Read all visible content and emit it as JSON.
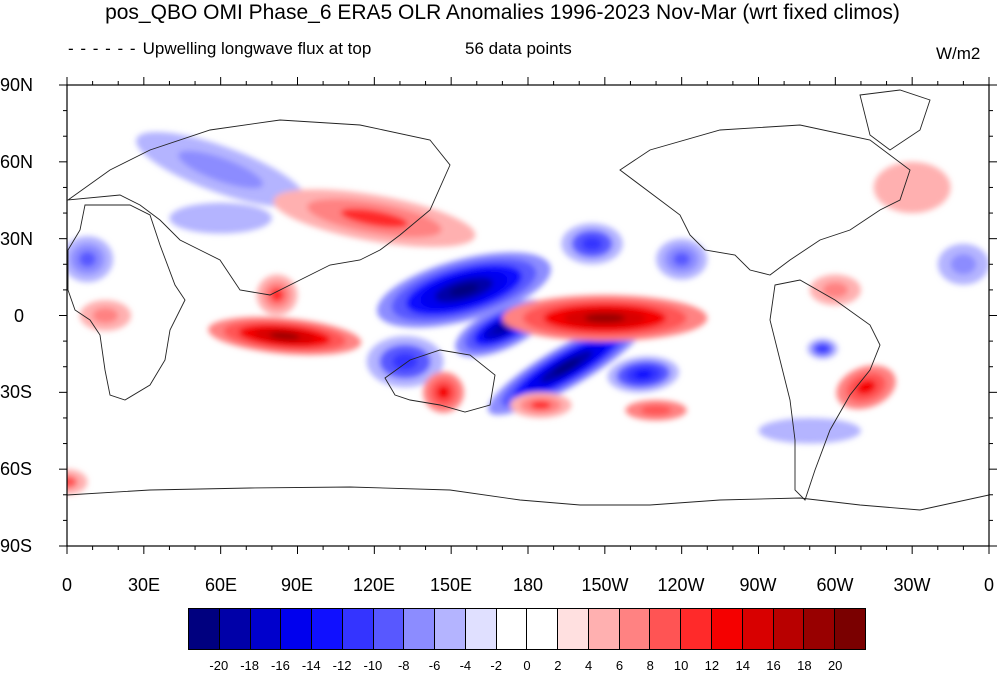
{
  "title": "pos_QBO OMI Phase_6 ERA5 OLR Anomalies 1996-2023 Nov-Mar (wrt fixed climos)",
  "subtitle_left": "Upwelling longwave flux at top",
  "subtitle_mid": "56 data points",
  "units": "W/m2",
  "legend_dash": "- - - - - -",
  "y_ticks": [
    "90N",
    "60N",
    "30N",
    "0",
    "30S",
    "60S",
    "90S"
  ],
  "x_ticks": [
    "0",
    "30E",
    "60E",
    "90E",
    "120E",
    "150E",
    "180",
    "150W",
    "120W",
    "90W",
    "60W",
    "30W",
    "0"
  ],
  "colorbar": {
    "labels": [
      "-20",
      "-18",
      "-16",
      "-14",
      "-12",
      "-10",
      "-8",
      "-6",
      "-4",
      "-2",
      "0",
      "2",
      "4",
      "6",
      "8",
      "10",
      "12",
      "14",
      "16",
      "18",
      "20"
    ],
    "colors": [
      "#00007f",
      "#0000a8",
      "#0000cc",
      "#0000ee",
      "#1010ff",
      "#3434ff",
      "#5858ff",
      "#8c8cff",
      "#b4b4ff",
      "#e0e0ff",
      "#ffffff",
      "#ffffff",
      "#ffe0e0",
      "#ffb0b0",
      "#ff8282",
      "#ff5454",
      "#ff2a2a",
      "#f50000",
      "#d80000",
      "#b80000",
      "#980000",
      "#7a0000"
    ]
  },
  "map": {
    "lon_range": [
      0,
      360
    ],
    "lat_range": [
      -90,
      90
    ],
    "anomalies": [
      {
        "lon": 155,
        "lat": 10,
        "rx": 35,
        "ry": 12,
        "rot": -15,
        "value": -22
      },
      {
        "lon": 170,
        "lat": -5,
        "rx": 20,
        "ry": 8,
        "rot": -25,
        "value": -20
      },
      {
        "lon": 195,
        "lat": -20,
        "rx": 35,
        "ry": 8,
        "rot": -30,
        "value": -22
      },
      {
        "lon": 132,
        "lat": -18,
        "rx": 15,
        "ry": 10,
        "rot": 0,
        "value": -12
      },
      {
        "lon": 225,
        "lat": -23,
        "rx": 14,
        "ry": 7,
        "rot": -5,
        "value": -14
      },
      {
        "lon": 205,
        "lat": 28,
        "rx": 12,
        "ry": 8,
        "rot": 0,
        "value": -12
      },
      {
        "lon": 240,
        "lat": 22,
        "rx": 10,
        "ry": 8,
        "rot": 0,
        "value": -10
      },
      {
        "lon": 60,
        "lat": 57,
        "rx": 35,
        "ry": 9,
        "rot": 20,
        "value": -8
      },
      {
        "lon": 8,
        "lat": 22,
        "rx": 10,
        "ry": 9,
        "rot": 0,
        "value": -10
      },
      {
        "lon": 295,
        "lat": -13,
        "rx": 6,
        "ry": 4,
        "rot": 0,
        "value": -12
      },
      {
        "lon": 350,
        "lat": 20,
        "rx": 10,
        "ry": 8,
        "rot": 0,
        "value": -8
      },
      {
        "lon": 60,
        "lat": 38,
        "rx": 20,
        "ry": 6,
        "rot": 0,
        "value": -6
      },
      {
        "lon": 290,
        "lat": -45,
        "rx": 20,
        "ry": 5,
        "rot": 0,
        "value": -5
      },
      {
        "lon": 210,
        "lat": -1,
        "rx": 40,
        "ry": 9,
        "rot": 0,
        "value": 18
      },
      {
        "lon": 85,
        "lat": -8,
        "rx": 30,
        "ry": 7,
        "rot": 5,
        "value": 18
      },
      {
        "lon": 82,
        "lat": 8,
        "rx": 8,
        "ry": 8,
        "rot": 0,
        "value": 10
      },
      {
        "lon": 120,
        "lat": 38,
        "rx": 40,
        "ry": 9,
        "rot": 10,
        "value": 10
      },
      {
        "lon": 147,
        "lat": -30,
        "rx": 8,
        "ry": 8,
        "rot": 0,
        "value": 12
      },
      {
        "lon": 185,
        "lat": -35,
        "rx": 12,
        "ry": 5,
        "rot": 0,
        "value": 10
      },
      {
        "lon": 230,
        "lat": -37,
        "rx": 12,
        "ry": 4,
        "rot": 0,
        "value": 9
      },
      {
        "lon": 312,
        "lat": -28,
        "rx": 12,
        "ry": 8,
        "rot": -20,
        "value": 12
      },
      {
        "lon": 15,
        "lat": 0,
        "rx": 10,
        "ry": 6,
        "rot": 0,
        "value": 6
      },
      {
        "lon": 0,
        "lat": -65,
        "rx": 8,
        "ry": 5,
        "rot": 0,
        "value": 8
      },
      {
        "lon": 300,
        "lat": 10,
        "rx": 10,
        "ry": 6,
        "rot": 0,
        "value": 6
      },
      {
        "lon": 330,
        "lat": 50,
        "rx": 15,
        "ry": 10,
        "rot": 0,
        "value": 5
      }
    ]
  }
}
